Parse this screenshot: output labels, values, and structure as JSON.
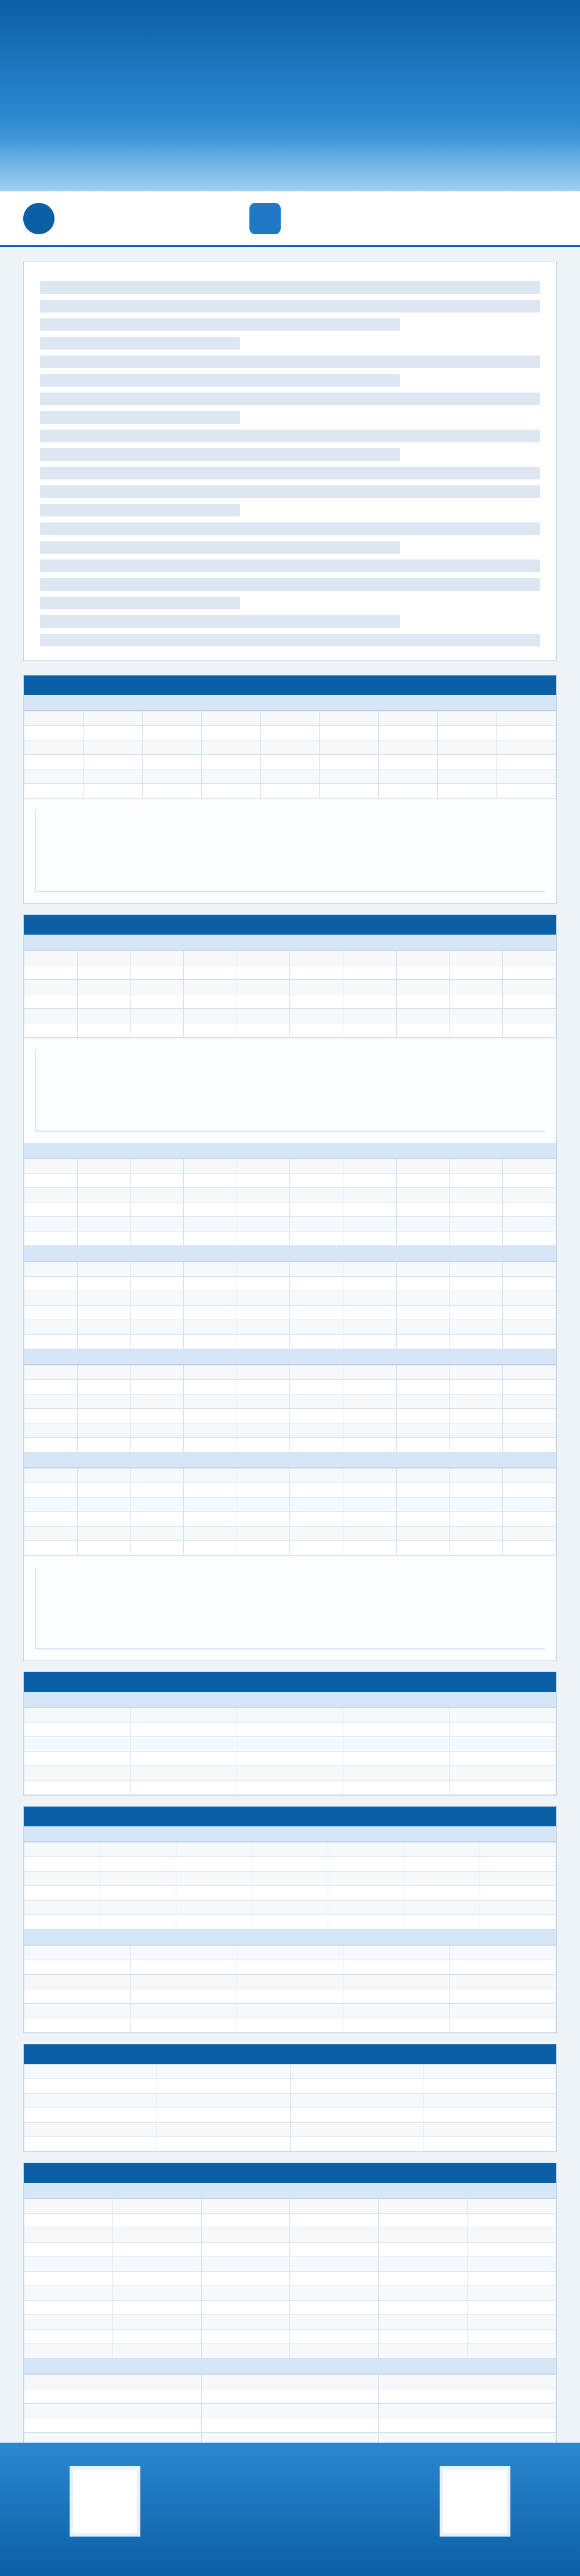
{
  "banner": {
    "title": ""
  },
  "intro": {
    "paragraphs": []
  },
  "sections": []
}
